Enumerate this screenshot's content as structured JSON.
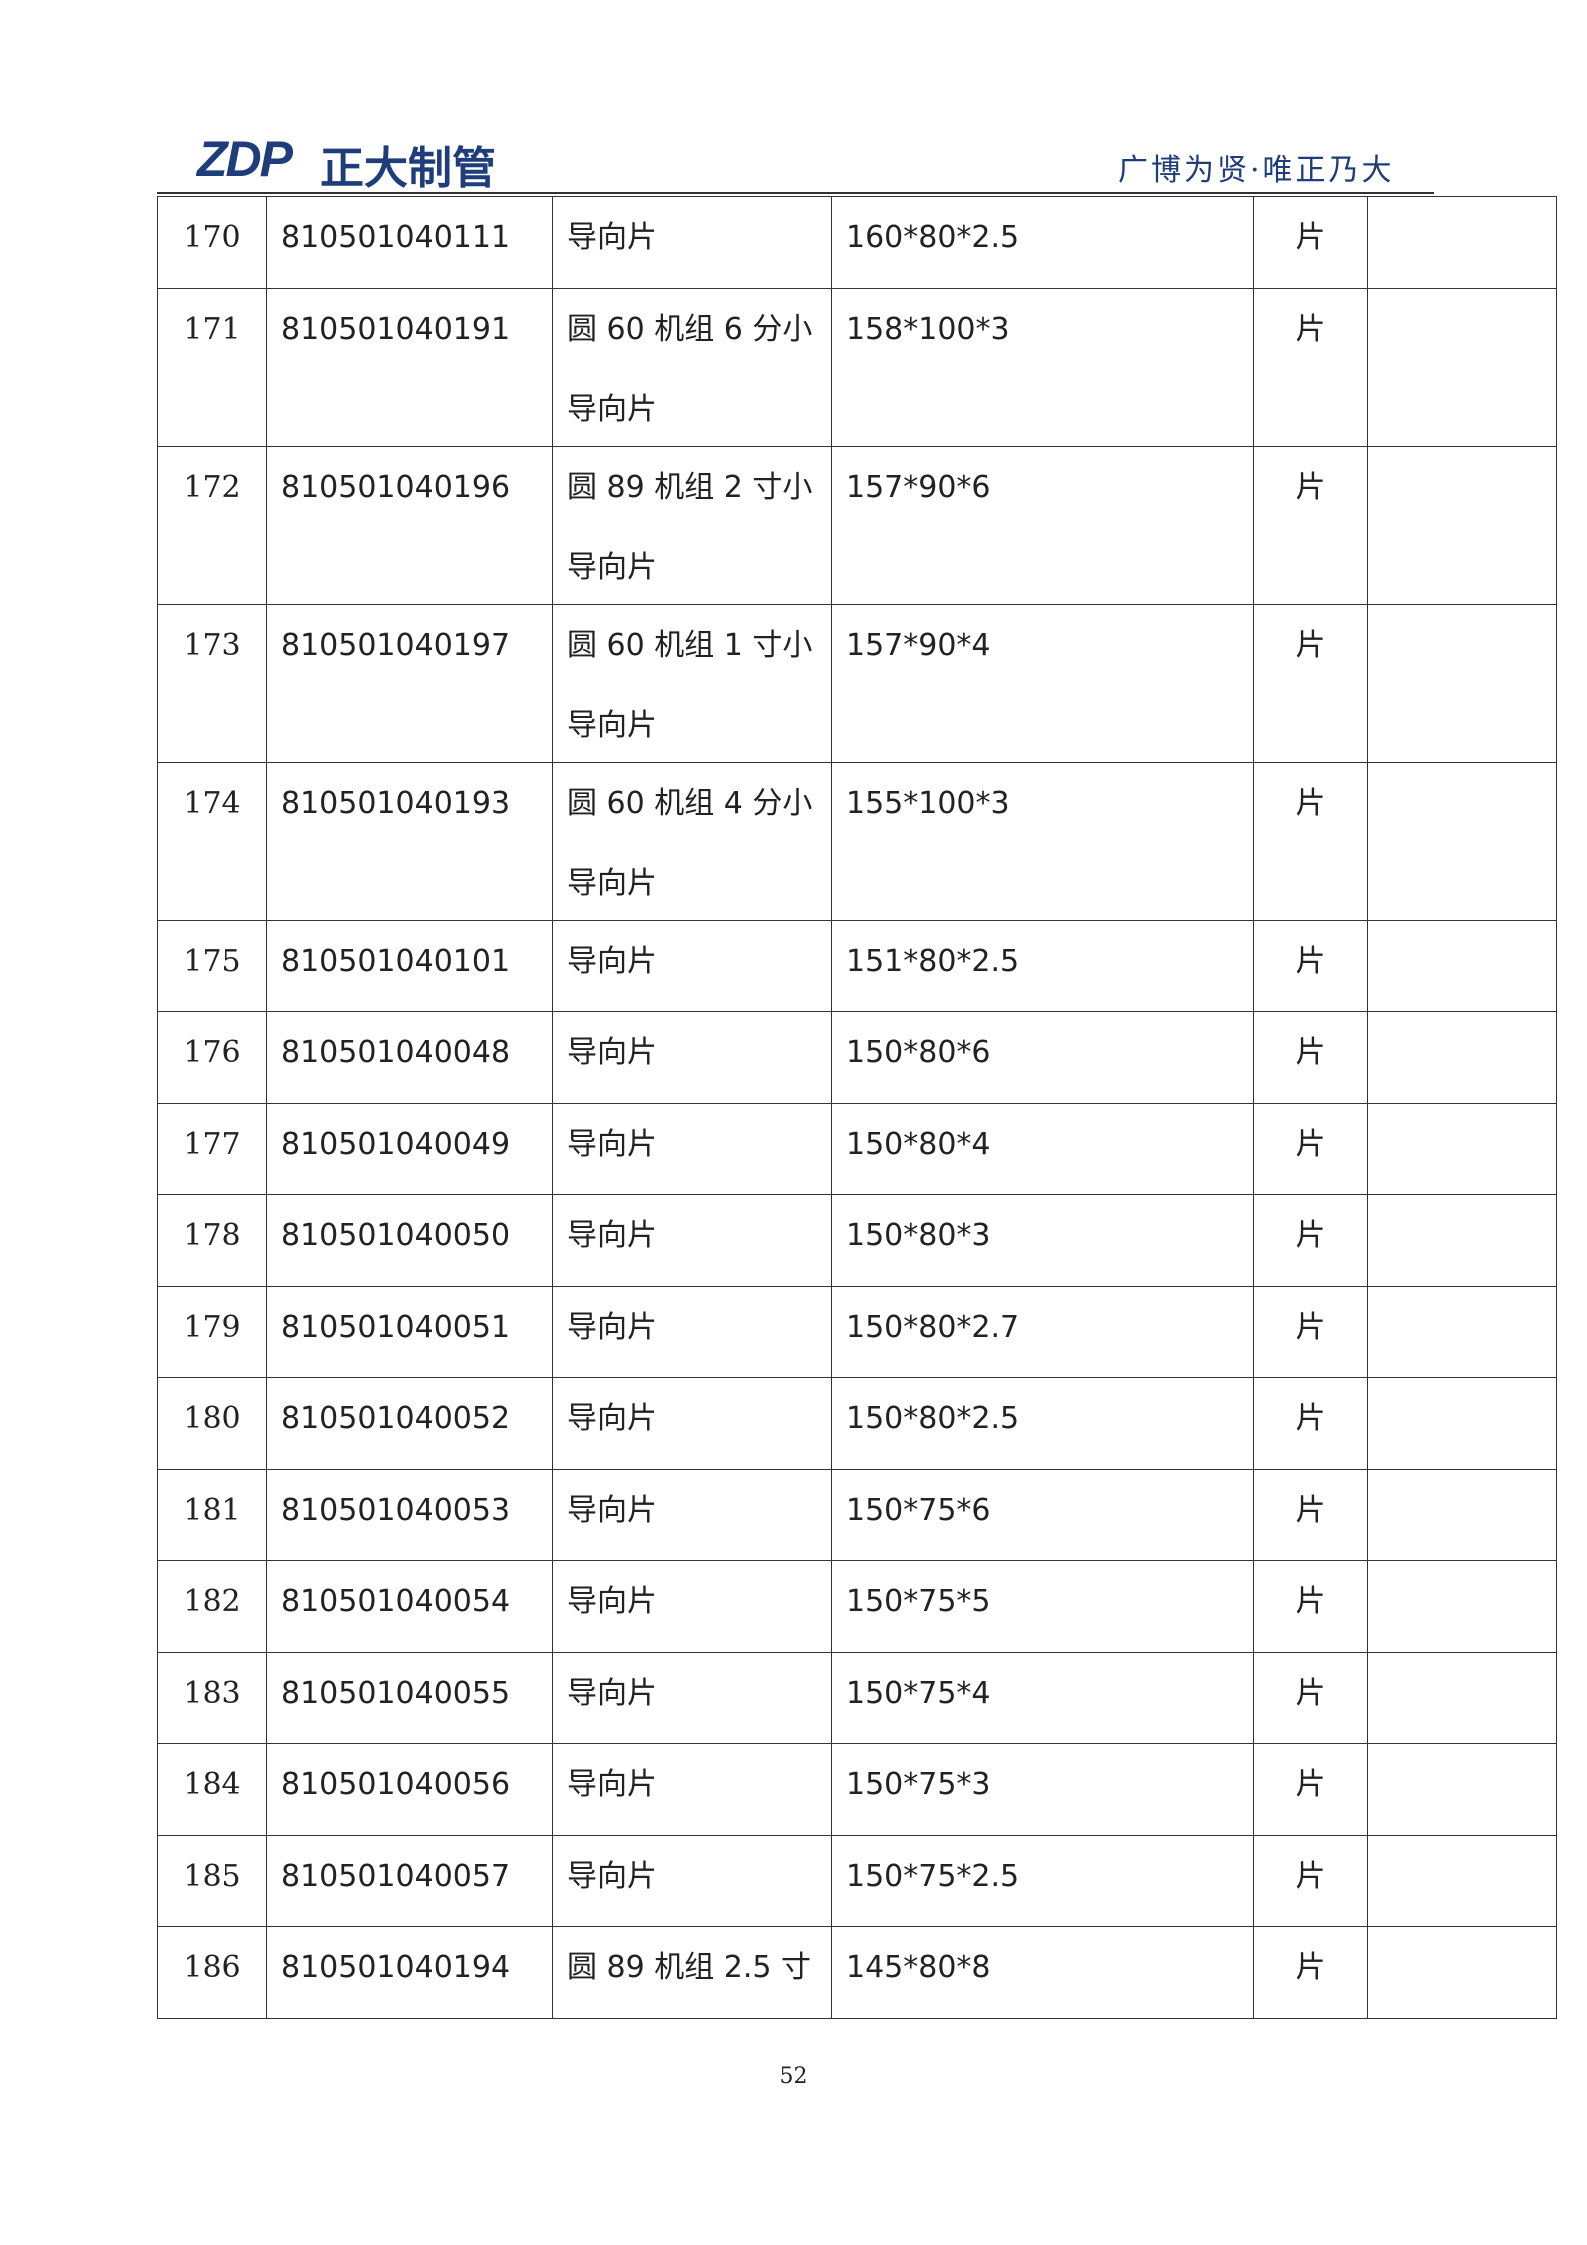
{
  "header": {
    "logo_mark": "ZDP",
    "logo_text": "正大制管",
    "slogan": "广博为贤·唯正乃大"
  },
  "table": {
    "rows": [
      [
        "170",
        "810501040111",
        "导向片",
        "160*80*2.5",
        "片"
      ],
      [
        "171",
        "810501040191",
        "圆 60 机组 6 分小导向片",
        "158*100*3",
        "片"
      ],
      [
        "172",
        "810501040196",
        "圆 89 机组 2 寸小导向片",
        "157*90*6",
        "片"
      ],
      [
        "173",
        "810501040197",
        "圆 60 机组 1 寸小导向片",
        "157*90*4",
        "片"
      ],
      [
        "174",
        "810501040193",
        "圆 60 机组 4 分小导向片",
        "155*100*3",
        "片"
      ],
      [
        "175",
        "810501040101",
        "导向片",
        "151*80*2.5",
        "片"
      ],
      [
        "176",
        "810501040048",
        "导向片",
        "150*80*6",
        "片"
      ],
      [
        "177",
        "810501040049",
        "导向片",
        "150*80*4",
        "片"
      ],
      [
        "178",
        "810501040050",
        "导向片",
        "150*80*3",
        "片"
      ],
      [
        "179",
        "810501040051",
        "导向片",
        "150*80*2.7",
        "片"
      ],
      [
        "180",
        "810501040052",
        "导向片",
        "150*80*2.5",
        "片"
      ],
      [
        "181",
        "810501040053",
        "导向片",
        "150*75*6",
        "片"
      ],
      [
        "182",
        "810501040054",
        "导向片",
        "150*75*5",
        "片"
      ],
      [
        "183",
        "810501040055",
        "导向片",
        "150*75*4",
        "片"
      ],
      [
        "184",
        "810501040056",
        "导向片",
        "150*75*3",
        "片"
      ],
      [
        "185",
        "810501040057",
        "导向片",
        "150*75*2.5",
        "片"
      ],
      [
        "186",
        "810501040194",
        "圆 89 机组 2.5 寸",
        "145*80*8",
        "片"
      ]
    ]
  },
  "footer": {
    "page_number": "52"
  }
}
